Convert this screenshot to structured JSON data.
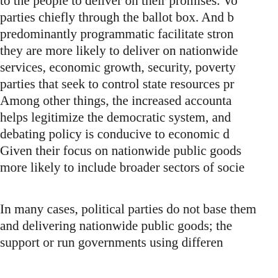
{
  "document": {
    "paragraphs": [
      {
        "lines": [
          "to the people to deliver on their promises. Vo",
          "parties chiefly through the ballot box. And b",
          "predominantly programmatic facilitate stron",
          "they are more likely to deliver on nationwide",
          "services, economic growth, security, poverty",
          "parties that seek to control state resources pr",
          "Among other things, the increased accounta",
          "helps legitimize the democratic system, and",
          "debating policy is conducive to economic d",
          "Given their focus on nationwide public goods",
          "more likely to include broader sectors of socie"
        ]
      },
      {
        "lines": [
          "In many cases, political parties do not base them",
          "and delivering nationwide public goods; the",
          "support or run governments using differen"
        ]
      }
    ]
  }
}
